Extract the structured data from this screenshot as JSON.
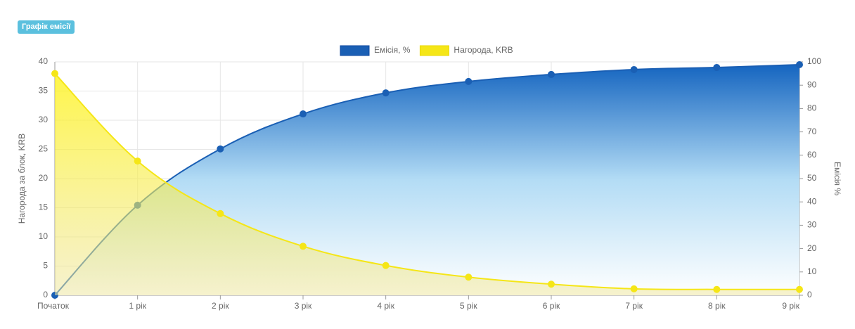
{
  "button": "Графік емісії",
  "chart_data": {
    "type": "line",
    "categories": [
      "Початок",
      "1 рік",
      "2 рік",
      "3 рік",
      "4 рік",
      "5 рік",
      "6 рік",
      "7 рік",
      "8 рік",
      "9 рік"
    ],
    "series": [
      {
        "name": "Емісія, %",
        "color": "#1a5fb4",
        "axis": "y2",
        "values": [
          0,
          38.6,
          62.7,
          77.7,
          86.7,
          91.6,
          94.6,
          96.7,
          97.6,
          98.8
        ]
      },
      {
        "name": "Нагорода, KRB",
        "color": "#f5e617",
        "axis": "y",
        "values": [
          38,
          23,
          14,
          8.4,
          5.1,
          3.1,
          1.9,
          1.1,
          1,
          1
        ]
      }
    ],
    "ylabel": "Нагорода за блок, KRB",
    "y2label": "Емісія %",
    "ylim": [
      0,
      40
    ],
    "yticks": [
      0,
      5,
      10,
      15,
      20,
      25,
      30,
      35,
      40
    ],
    "y2lim": [
      0,
      100
    ],
    "y2ticks": [
      0,
      10,
      20,
      30,
      40,
      50,
      60,
      70,
      80,
      90,
      100
    ],
    "grid": true,
    "legend": "top"
  }
}
